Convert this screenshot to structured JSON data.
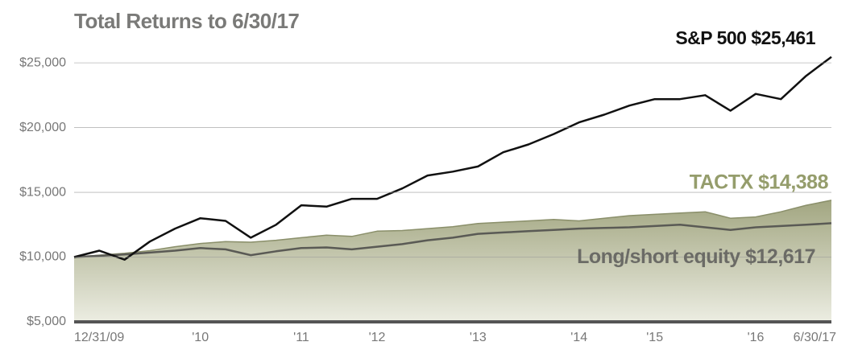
{
  "chart_data": {
    "type": "line",
    "title": "Total Returns to 6/30/17",
    "categories": [
      "12/31/09",
      null,
      null,
      null,
      null,
      "'10",
      null,
      null,
      null,
      "'11",
      null,
      null,
      "'12",
      null,
      null,
      null,
      "'13",
      null,
      null,
      null,
      "'14",
      null,
      null,
      "'15",
      null,
      null,
      null,
      "'16",
      null,
      null,
      "6/30/17"
    ],
    "series": [
      {
        "name": "TACTX $14,388",
        "color": "#8a8f6a",
        "fill": "#a9ad8c",
        "label_color": "#959d6c",
        "values": [
          10000,
          10150,
          10300,
          10500,
          10800,
          11050,
          11200,
          11150,
          11300,
          11500,
          11700,
          11600,
          12000,
          12050,
          12200,
          12350,
          12600,
          12700,
          12800,
          12900,
          12800,
          13000,
          13200,
          13300,
          13400,
          13500,
          13000,
          13100,
          13500,
          14000,
          14388
        ]
      },
      {
        "name": "Long/short equity $12,617",
        "color": "#5a5a55",
        "label_color": "#6b6b66",
        "values": [
          10000,
          10100,
          10200,
          10350,
          10500,
          10700,
          10600,
          10150,
          10450,
          10700,
          10750,
          10600,
          10800,
          11000,
          11300,
          11500,
          11800,
          11900,
          12000,
          12100,
          12200,
          12250,
          12300,
          12400,
          12500,
          12300,
          12100,
          12300,
          12400,
          12500,
          12617
        ]
      },
      {
        "name": "S&P 500 $25,461",
        "color": "#111111",
        "label_color": "#111111",
        "values": [
          10000,
          10500,
          9800,
          11200,
          12200,
          13000,
          12800,
          11500,
          12500,
          14000,
          13900,
          14500,
          14500,
          15300,
          16300,
          16600,
          17000,
          18100,
          18700,
          19500,
          20400,
          21000,
          21700,
          22200,
          22200,
          22500,
          21300,
          22600,
          22200,
          24000,
          25461
        ]
      }
    ],
    "ylim": [
      5000,
      26000
    ],
    "yticks": [
      {
        "value": 5000,
        "label": "$5,000"
      },
      {
        "value": 10000,
        "label": "$10,000"
      },
      {
        "value": 15000,
        "label": "$15,000"
      },
      {
        "value": 20000,
        "label": "$20,000"
      },
      {
        "value": 25000,
        "label": "$25,000"
      }
    ],
    "grid": true
  }
}
